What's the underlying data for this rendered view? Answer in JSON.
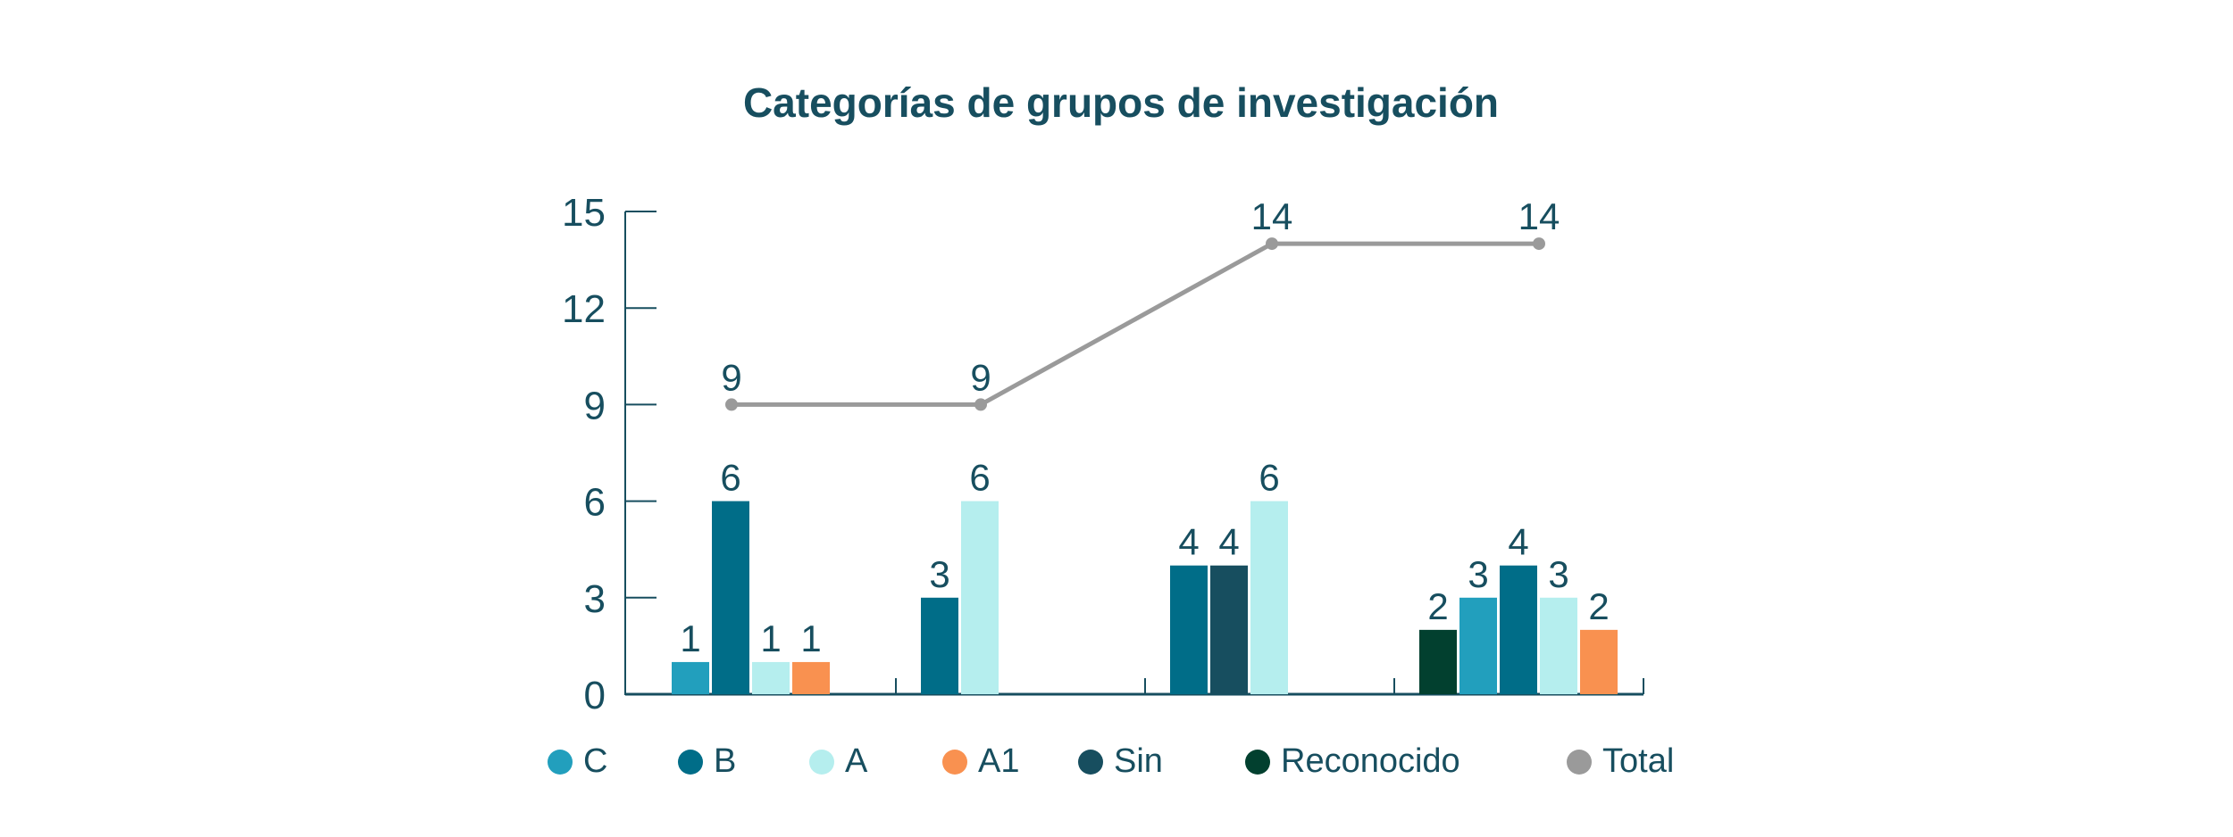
{
  "chart_data": {
    "type": "bar",
    "title": "Categorías de grupos de investigación",
    "xlabel": "",
    "ylabel": "",
    "ylim": [
      0,
      15
    ],
    "yticks": [
      "0",
      "3",
      "6",
      "9",
      "12",
      "15"
    ],
    "grid": false,
    "legend_position": "bottom",
    "groups": [
      {
        "bars": [
          {
            "series": "C",
            "value": 1
          },
          {
            "series": "B",
            "value": 6
          },
          {
            "series": "A",
            "value": 1
          },
          {
            "series": "A1",
            "value": 1
          }
        ],
        "total": 9
      },
      {
        "bars": [
          {
            "series": "B",
            "value": 3
          },
          {
            "series": "A",
            "value": 6
          }
        ],
        "total": 9
      },
      {
        "bars": [
          {
            "series": "B",
            "value": 4
          },
          {
            "series": "Sin",
            "value": 4
          },
          {
            "series": "A",
            "value": 6
          }
        ],
        "total": 14
      },
      {
        "bars": [
          {
            "series": "Reconocido",
            "value": 2
          },
          {
            "series": "C",
            "value": 3
          },
          {
            "series": "B",
            "value": 4
          },
          {
            "series": "A",
            "value": 3
          },
          {
            "series": "A1",
            "value": 2
          }
        ],
        "total": 14
      }
    ],
    "series": [
      {
        "name": "C",
        "color": "#229fbd",
        "type": "bar"
      },
      {
        "name": "B",
        "color": "#006d88",
        "type": "bar"
      },
      {
        "name": "A",
        "color": "#b5eeee",
        "type": "bar"
      },
      {
        "name": "A1",
        "color": "#f99150",
        "type": "bar"
      },
      {
        "name": "Sin",
        "color": "#174e5f",
        "type": "bar"
      },
      {
        "name": "Reconocido",
        "color": "#02402f",
        "type": "bar"
      },
      {
        "name": "Total",
        "color": "#9a9a9a",
        "type": "line",
        "values": [
          9,
          9,
          14,
          14
        ]
      }
    ],
    "text_color": "#174e5f"
  }
}
